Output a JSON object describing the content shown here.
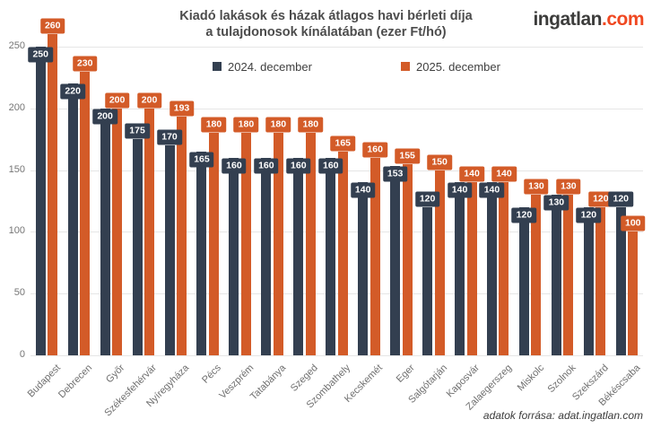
{
  "header": {
    "title_line1": "Kiadó lakások és házak átlagos havi bérleti díja",
    "title_line2": "a tulajdonosok kínálatában (ezer Ft/hó)",
    "logo": {
      "brand": "ingatlan",
      "tld": ".com",
      "brand_color": "#3c3c3b",
      "tld_color": "#f04821"
    }
  },
  "legend": {
    "items": [
      {
        "label": "2024. december",
        "color": "#333f50"
      },
      {
        "label": "2025. december",
        "color": "#d35b28"
      }
    ]
  },
  "footer": {
    "source": "adatok forrása: adat.ingatlan.com"
  },
  "chart_data": {
    "type": "bar",
    "title": "Kiadó lakások és házak átlagos havi bérleti díja a tulajdonosok kínálatában (ezer Ft/hó)",
    "unit": "ezer Ft/hó",
    "categories": [
      "Budapest",
      "Debrecen",
      "Győr",
      "Székesfehérvár",
      "Nyíregyháza",
      "Pécs",
      "Veszprém",
      "Tatabánya",
      "Szeged",
      "Szombathely",
      "Kecskemét",
      "Eger",
      "Salgótarján",
      "Kaposvár",
      "Zalaegerszeg",
      "Miskolc",
      "Szolnok",
      "Szekszárd",
      "Békéscsaba"
    ],
    "series": [
      {
        "name": "2024. december",
        "color": "#333f50",
        "values": [
          250,
          220,
          200,
          175,
          170,
          165,
          160,
          160,
          160,
          160,
          140,
          153,
          120,
          140,
          140,
          120,
          130,
          120,
          120
        ]
      },
      {
        "name": "2025. december",
        "color": "#d35b28",
        "values": [
          260,
          230,
          200,
          200,
          193,
          180,
          180,
          180,
          180,
          165,
          160,
          155,
          150,
          140,
          140,
          130,
          130,
          120,
          100
        ]
      }
    ],
    "ylim": [
      0,
      250
    ],
    "yticks": [
      0,
      50,
      100,
      150,
      200,
      250
    ],
    "grid": "horizontal",
    "legend_position": "top",
    "data_labels": true,
    "source": "adatok forrása: adat.ingatlan.com"
  }
}
